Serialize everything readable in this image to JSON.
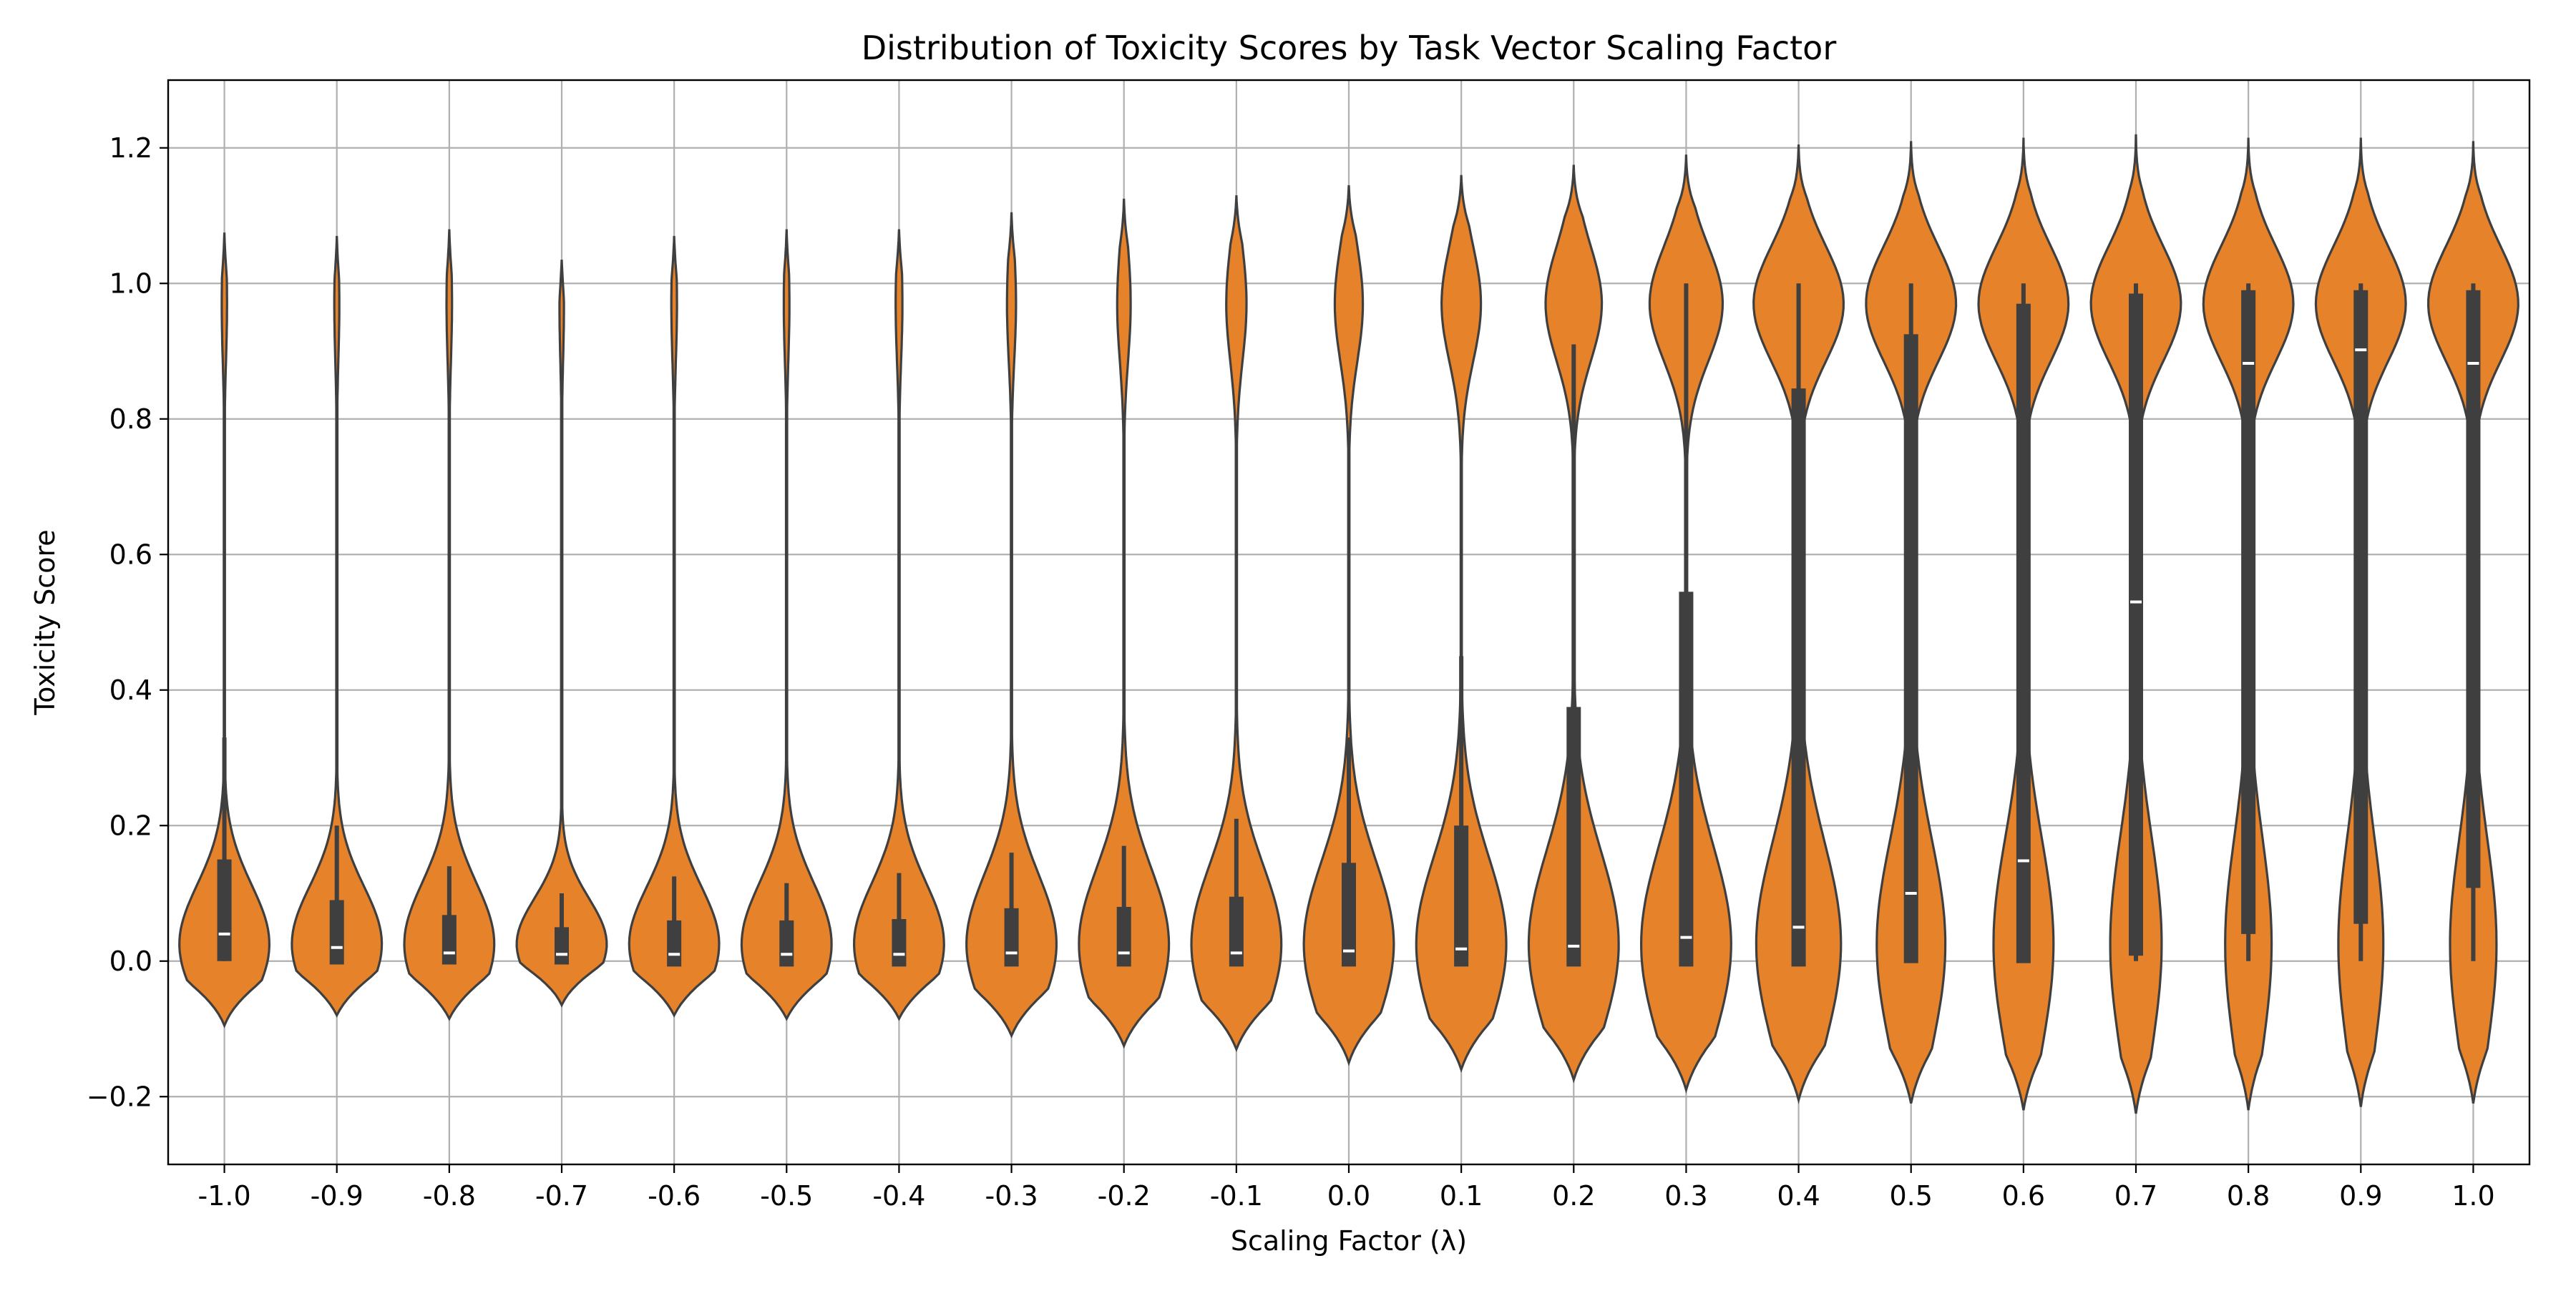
{
  "chart_data": {
    "type": "violin",
    "title": "Distribution of Toxicity Scores by Task Vector Scaling Factor",
    "xlabel": "Scaling Factor (λ)",
    "ylabel": "Toxicity Score",
    "ylim": [
      -0.3,
      1.3
    ],
    "yticks": [
      "−0.2",
      "0.0",
      "0.2",
      "0.4",
      "0.6",
      "0.8",
      "1.0",
      "1.2"
    ],
    "ytick_values": [
      -0.2,
      0.0,
      0.2,
      0.4,
      0.6,
      0.8,
      1.0,
      1.2
    ],
    "categories": [
      "-1.0",
      "-0.9",
      "-0.8",
      "-0.7",
      "-0.6",
      "-0.5",
      "-0.4",
      "-0.3",
      "-0.2",
      "-0.1",
      "0.0",
      "0.1",
      "0.2",
      "0.3",
      "0.4",
      "0.5",
      "0.6",
      "0.7",
      "0.8",
      "0.9",
      "1.0"
    ],
    "grid": true,
    "violin_color": "#e6822a",
    "edge_color": "#3f3f3f",
    "box_color": "#3f3f3f",
    "median_color": "#ffffff",
    "grid_color": "#b0b0b0",
    "violins": [
      {
        "min": -0.095,
        "max": 1.075,
        "low_w": 0.085,
        "high_w": 0.005,
        "q1": 0.0,
        "median": 0.04,
        "q3": 0.15,
        "whisker_hi": 0.33
      },
      {
        "min": -0.08,
        "max": 1.07,
        "low_w": 0.09,
        "high_w": 0.005,
        "q1": -0.005,
        "median": 0.02,
        "q3": 0.09,
        "whisker_hi": 0.2
      },
      {
        "min": -0.085,
        "max": 1.08,
        "low_w": 0.082,
        "high_w": 0.005,
        "q1": -0.005,
        "median": 0.012,
        "q3": 0.068,
        "whisker_hi": 0.14
      },
      {
        "min": -0.065,
        "max": 1.035,
        "low_w": 0.08,
        "high_w": 0.004,
        "q1": -0.005,
        "median": 0.01,
        "q3": 0.05,
        "whisker_hi": 0.1
      },
      {
        "min": -0.08,
        "max": 1.07,
        "low_w": 0.08,
        "high_w": 0.005,
        "q1": -0.008,
        "median": 0.01,
        "q3": 0.06,
        "whisker_hi": 0.125
      },
      {
        "min": -0.085,
        "max": 1.08,
        "low_w": 0.08,
        "high_w": 0.005,
        "q1": -0.008,
        "median": 0.01,
        "q3": 0.06,
        "whisker_hi": 0.115
      },
      {
        "min": -0.085,
        "max": 1.08,
        "low_w": 0.08,
        "high_w": 0.006,
        "q1": -0.008,
        "median": 0.01,
        "q3": 0.062,
        "whisker_hi": 0.13
      },
      {
        "min": -0.11,
        "max": 1.105,
        "low_w": 0.08,
        "high_w": 0.008,
        "q1": -0.008,
        "median": 0.012,
        "q3": 0.078,
        "whisker_hi": 0.16
      },
      {
        "min": -0.125,
        "max": 1.125,
        "low_w": 0.08,
        "high_w": 0.012,
        "q1": -0.008,
        "median": 0.012,
        "q3": 0.08,
        "whisker_hi": 0.17
      },
      {
        "min": -0.13,
        "max": 1.13,
        "low_w": 0.08,
        "high_w": 0.018,
        "q1": -0.008,
        "median": 0.012,
        "q3": 0.095,
        "whisker_hi": 0.21
      },
      {
        "min": -0.15,
        "max": 1.145,
        "low_w": 0.08,
        "high_w": 0.025,
        "q1": -0.008,
        "median": 0.015,
        "q3": 0.145,
        "whisker_hi": 0.33
      },
      {
        "min": -0.16,
        "max": 1.16,
        "low_w": 0.08,
        "high_w": 0.035,
        "q1": -0.008,
        "median": 0.018,
        "q3": 0.2,
        "whisker_hi": 0.45
      },
      {
        "min": -0.175,
        "max": 1.175,
        "low_w": 0.08,
        "high_w": 0.05,
        "q1": -0.008,
        "median": 0.022,
        "q3": 0.375,
        "whisker_hi": 0.91
      },
      {
        "min": -0.19,
        "max": 1.19,
        "low_w": 0.08,
        "high_w": 0.065,
        "q1": -0.008,
        "median": 0.035,
        "q3": 0.545,
        "whisker_hi": 1.0
      },
      {
        "min": -0.205,
        "max": 1.205,
        "low_w": 0.08,
        "high_w": 0.085,
        "q1": -0.008,
        "median": 0.05,
        "q3": 0.845,
        "whisker_hi": 1.0
      },
      {
        "min": -0.21,
        "max": 1.21,
        "low_w": 0.08,
        "high_w": 0.105,
        "q1": -0.003,
        "median": 0.1,
        "q3": 0.925,
        "whisker_hi": 1.0
      },
      {
        "min": -0.22,
        "max": 1.215,
        "low_w": 0.08,
        "high_w": 0.12,
        "q1": -0.003,
        "median": 0.148,
        "q3": 0.97,
        "whisker_hi": 1.0
      },
      {
        "min": -0.225,
        "max": 1.22,
        "low_w": 0.08,
        "high_w": 0.14,
        "q1": 0.008,
        "median": 0.53,
        "q3": 0.985,
        "whisker_hi": 1.0
      },
      {
        "min": -0.22,
        "max": 1.215,
        "low_w": 0.08,
        "high_w": 0.155,
        "q1": 0.04,
        "median": 0.882,
        "q3": 0.99,
        "whisker_hi": 1.0
      },
      {
        "min": -0.215,
        "max": 1.215,
        "low_w": 0.08,
        "high_w": 0.16,
        "q1": 0.055,
        "median": 0.902,
        "q3": 0.99,
        "whisker_hi": 1.0
      },
      {
        "min": -0.21,
        "max": 1.21,
        "low_w": 0.08,
        "high_w": 0.155,
        "q1": 0.108,
        "median": 0.882,
        "q3": 0.99,
        "whisker_hi": 1.0
      }
    ]
  }
}
